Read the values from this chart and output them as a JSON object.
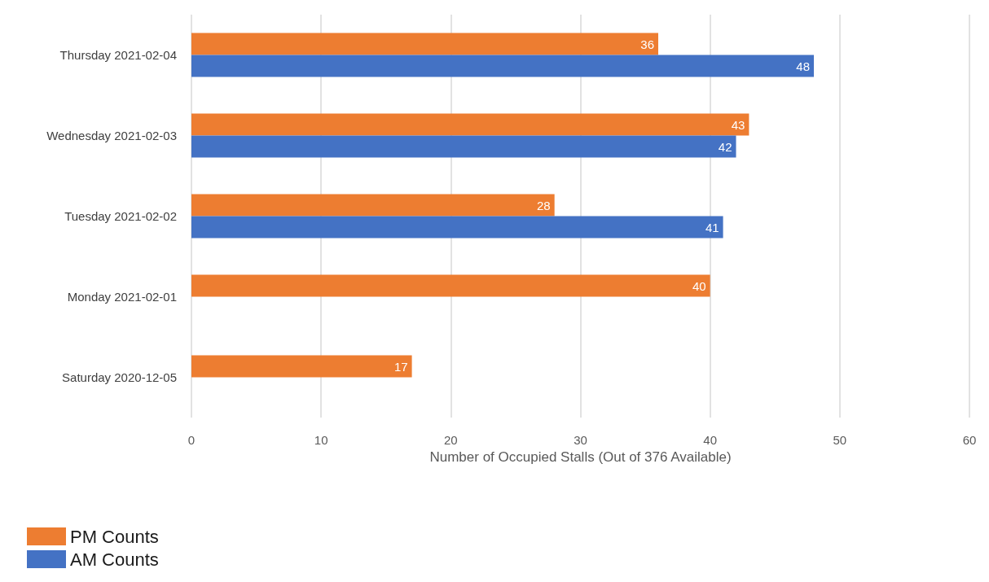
{
  "chart_data": {
    "type": "bar",
    "orientation": "horizontal",
    "xlabel": "Number of Occupied Stalls (Out of 376 Available)",
    "categories": [
      "Thursday 2021-02-04",
      "Wednesday 2021-02-03",
      "Tuesday 2021-02-02",
      "Monday 2021-02-01",
      "Saturday 2020-12-05"
    ],
    "series": [
      {
        "name": "PM Counts",
        "color": "#ed7d31",
        "values": [
          36,
          43,
          28,
          40,
          17
        ]
      },
      {
        "name": "AM Counts",
        "color": "#4472c4",
        "values": [
          48,
          42,
          41,
          null,
          null
        ]
      }
    ],
    "xlim": [
      0,
      60
    ],
    "xticks": [
      0,
      10,
      20,
      30,
      40,
      50,
      60
    ],
    "grid": "x",
    "legend": "bottom left",
    "data_labels": true
  }
}
